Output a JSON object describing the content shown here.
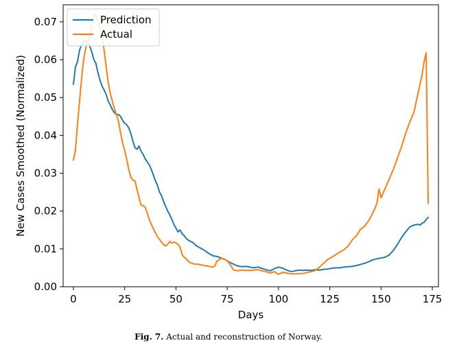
{
  "caption": {
    "label": "Fig. 7.",
    "text": "Actual and reconstruction of Norway."
  },
  "chart_data": {
    "type": "line",
    "xlabel": "Days",
    "ylabel": "New Cases Smoothed (Normalized)",
    "xlim": [
      -5,
      178
    ],
    "ylim": [
      0,
      0.0745
    ],
    "xticks": [
      0,
      25,
      50,
      75,
      100,
      125,
      150,
      175
    ],
    "xtick_labels": [
      "0",
      "25",
      "50",
      "75",
      "100",
      "125",
      "150",
      "175"
    ],
    "yticks": [
      0,
      0.01,
      0.02,
      0.03,
      0.04,
      0.05,
      0.06,
      0.07
    ],
    "ytick_labels": [
      "0.00",
      "0.01",
      "0.02",
      "0.03",
      "0.04",
      "0.05",
      "0.06",
      "0.07"
    ],
    "grid": false,
    "legend_position": "top-left",
    "series": [
      {
        "name": "Prediction",
        "color": "#1f77b4",
        "points": [
          [
            0,
            0.0535
          ],
          [
            1,
            0.058
          ],
          [
            2,
            0.0595
          ],
          [
            3,
            0.0625
          ],
          [
            4,
            0.064
          ],
          [
            5,
            0.065
          ],
          [
            6,
            0.0648
          ],
          [
            7,
            0.0645
          ],
          [
            8,
            0.0635
          ],
          [
            9,
            0.062
          ],
          [
            10,
            0.06
          ],
          [
            11,
            0.059
          ],
          [
            12,
            0.0565
          ],
          [
            13,
            0.0545
          ],
          [
            14,
            0.053
          ],
          [
            15,
            0.052
          ],
          [
            16,
            0.0508
          ],
          [
            17,
            0.049
          ],
          [
            18,
            0.048
          ],
          [
            19,
            0.0468
          ],
          [
            20,
            0.046
          ],
          [
            21,
            0.0455
          ],
          [
            22,
            0.0455
          ],
          [
            23,
            0.045
          ],
          [
            24,
            0.044
          ],
          [
            25,
            0.0432
          ],
          [
            26,
            0.0428
          ],
          [
            27,
            0.042
          ],
          [
            28,
            0.0405
          ],
          [
            29,
            0.0385
          ],
          [
            30,
            0.0368
          ],
          [
            31,
            0.0363
          ],
          [
            32,
            0.0372
          ],
          [
            33,
            0.0358
          ],
          [
            34,
            0.035
          ],
          [
            35,
            0.0338
          ],
          [
            36,
            0.033
          ],
          [
            37,
            0.0322
          ],
          [
            38,
            0.031
          ],
          [
            39,
            0.0295
          ],
          [
            40,
            0.028
          ],
          [
            41,
            0.0268
          ],
          [
            42,
            0.025
          ],
          [
            43,
            0.024
          ],
          [
            44,
            0.0225
          ],
          [
            45,
            0.0212
          ],
          [
            46,
            0.02
          ],
          [
            47,
            0.019
          ],
          [
            48,
            0.0178
          ],
          [
            49,
            0.0165
          ],
          [
            50,
            0.0155
          ],
          [
            51,
            0.0145
          ],
          [
            52,
            0.015
          ],
          [
            53,
            0.014
          ],
          [
            54,
            0.0135
          ],
          [
            55,
            0.0128
          ],
          [
            56,
            0.0123
          ],
          [
            57,
            0.012
          ],
          [
            58,
            0.0118
          ],
          [
            59,
            0.0113
          ],
          [
            60,
            0.0108
          ],
          [
            62,
            0.0102
          ],
          [
            64,
            0.0096
          ],
          [
            66,
            0.0088
          ],
          [
            68,
            0.0082
          ],
          [
            70,
            0.008
          ],
          [
            72,
            0.0076
          ],
          [
            74,
            0.0072
          ],
          [
            76,
            0.0065
          ],
          [
            78,
            0.006
          ],
          [
            80,
            0.0055
          ],
          [
            82,
            0.0053
          ],
          [
            84,
            0.0054
          ],
          [
            86,
            0.0052
          ],
          [
            88,
            0.005
          ],
          [
            90,
            0.0052
          ],
          [
            92,
            0.0048
          ],
          [
            94,
            0.0045
          ],
          [
            96,
            0.0042
          ],
          [
            98,
            0.0048
          ],
          [
            100,
            0.0052
          ],
          [
            102,
            0.0049
          ],
          [
            104,
            0.0044
          ],
          [
            106,
            0.004
          ],
          [
            108,
            0.0042
          ],
          [
            110,
            0.0044
          ],
          [
            112,
            0.0043
          ],
          [
            114,
            0.0044
          ],
          [
            116,
            0.0043
          ],
          [
            118,
            0.0045
          ],
          [
            120,
            0.0044
          ],
          [
            122,
            0.0046
          ],
          [
            124,
            0.0047
          ],
          [
            126,
            0.0049
          ],
          [
            128,
            0.005
          ],
          [
            130,
            0.005
          ],
          [
            132,
            0.0052
          ],
          [
            134,
            0.0053
          ],
          [
            136,
            0.0054
          ],
          [
            138,
            0.0056
          ],
          [
            140,
            0.0059
          ],
          [
            142,
            0.0062
          ],
          [
            144,
            0.0066
          ],
          [
            146,
            0.0071
          ],
          [
            148,
            0.0074
          ],
          [
            150,
            0.0076
          ],
          [
            152,
            0.0078
          ],
          [
            154,
            0.0084
          ],
          [
            156,
            0.0096
          ],
          [
            158,
            0.0112
          ],
          [
            160,
            0.013
          ],
          [
            162,
            0.0145
          ],
          [
            164,
            0.0158
          ],
          [
            166,
            0.0163
          ],
          [
            168,
            0.0165
          ],
          [
            169,
            0.0163
          ],
          [
            170,
            0.0168
          ],
          [
            171,
            0.017
          ],
          [
            172,
            0.0178
          ],
          [
            173,
            0.0183
          ]
        ]
      },
      {
        "name": "Actual",
        "color": "#ff7f0e",
        "points": [
          [
            0,
            0.0335
          ],
          [
            1,
            0.036
          ],
          [
            2,
            0.043
          ],
          [
            3,
            0.049
          ],
          [
            4,
            0.055
          ],
          [
            5,
            0.06
          ],
          [
            6,
            0.063
          ],
          [
            7,
            0.065
          ],
          [
            8,
            0.0665
          ],
          [
            9,
            0.069
          ],
          [
            10,
            0.0715
          ],
          [
            11,
            0.0718
          ],
          [
            12,
            0.07
          ],
          [
            13,
            0.0685
          ],
          [
            14,
            0.066
          ],
          [
            15,
            0.0625
          ],
          [
            16,
            0.058
          ],
          [
            17,
            0.054
          ],
          [
            18,
            0.051
          ],
          [
            19,
            0.049
          ],
          [
            20,
            0.047
          ],
          [
            21,
            0.0455
          ],
          [
            22,
            0.0437
          ],
          [
            23,
            0.0407
          ],
          [
            24,
            0.038
          ],
          [
            25,
            0.036
          ],
          [
            26,
            0.0337
          ],
          [
            27,
            0.031
          ],
          [
            28,
            0.029
          ],
          [
            29,
            0.0282
          ],
          [
            30,
            0.028
          ],
          [
            31,
            0.0258
          ],
          [
            32,
            0.0235
          ],
          [
            33,
            0.0215
          ],
          [
            34,
            0.0215
          ],
          [
            35,
            0.021
          ],
          [
            36,
            0.0195
          ],
          [
            37,
            0.0178
          ],
          [
            38,
            0.0165
          ],
          [
            39,
            0.0153
          ],
          [
            40,
            0.0142
          ],
          [
            41,
            0.0132
          ],
          [
            42,
            0.0125
          ],
          [
            43,
            0.0118
          ],
          [
            44,
            0.0111
          ],
          [
            45,
            0.0108
          ],
          [
            46,
            0.0112
          ],
          [
            47,
            0.012
          ],
          [
            48,
            0.0115
          ],
          [
            49,
            0.0118
          ],
          [
            50,
            0.0116
          ],
          [
            51,
            0.0112
          ],
          [
            52,
            0.0105
          ],
          [
            53,
            0.0085
          ],
          [
            54,
            0.0078
          ],
          [
            55,
            0.0074
          ],
          [
            56,
            0.0068
          ],
          [
            57,
            0.0063
          ],
          [
            58,
            0.0062
          ],
          [
            59,
            0.006
          ],
          [
            60,
            0.006
          ],
          [
            62,
            0.0058
          ],
          [
            64,
            0.0056
          ],
          [
            66,
            0.0054
          ],
          [
            68,
            0.0052
          ],
          [
            69,
            0.0055
          ],
          [
            70,
            0.0068
          ],
          [
            72,
            0.0075
          ],
          [
            74,
            0.0072
          ],
          [
            75,
            0.0068
          ],
          [
            76,
            0.0062
          ],
          [
            77,
            0.0054
          ],
          [
            78,
            0.0045
          ],
          [
            80,
            0.0042
          ],
          [
            82,
            0.0044
          ],
          [
            84,
            0.0043
          ],
          [
            86,
            0.0043
          ],
          [
            88,
            0.0044
          ],
          [
            90,
            0.0045
          ],
          [
            92,
            0.0042
          ],
          [
            94,
            0.004
          ],
          [
            96,
            0.0036
          ],
          [
            98,
            0.004
          ],
          [
            100,
            0.0033
          ],
          [
            102,
            0.0038
          ],
          [
            104,
            0.0036
          ],
          [
            106,
            0.0034
          ],
          [
            108,
            0.0034
          ],
          [
            110,
            0.0035
          ],
          [
            112,
            0.0035
          ],
          [
            114,
            0.0038
          ],
          [
            116,
            0.004
          ],
          [
            118,
            0.0043
          ],
          [
            120,
            0.0052
          ],
          [
            122,
            0.0062
          ],
          [
            124,
            0.0072
          ],
          [
            126,
            0.0078
          ],
          [
            128,
            0.0085
          ],
          [
            130,
            0.0092
          ],
          [
            132,
            0.0098
          ],
          [
            134,
            0.0108
          ],
          [
            136,
            0.0124
          ],
          [
            138,
            0.0135
          ],
          [
            140,
            0.0152
          ],
          [
            142,
            0.016
          ],
          [
            144,
            0.0175
          ],
          [
            146,
            0.0195
          ],
          [
            148,
            0.022
          ],
          [
            149,
            0.0258
          ],
          [
            150,
            0.0235
          ],
          [
            152,
            0.026
          ],
          [
            154,
            0.0285
          ],
          [
            156,
            0.031
          ],
          [
            158,
            0.034
          ],
          [
            160,
            0.037
          ],
          [
            162,
            0.0405
          ],
          [
            164,
            0.0435
          ],
          [
            166,
            0.046
          ],
          [
            168,
            0.051
          ],
          [
            170,
            0.056
          ],
          [
            171,
            0.0595
          ],
          [
            172,
            0.0618
          ],
          [
            173,
            0.022
          ]
        ]
      }
    ]
  }
}
